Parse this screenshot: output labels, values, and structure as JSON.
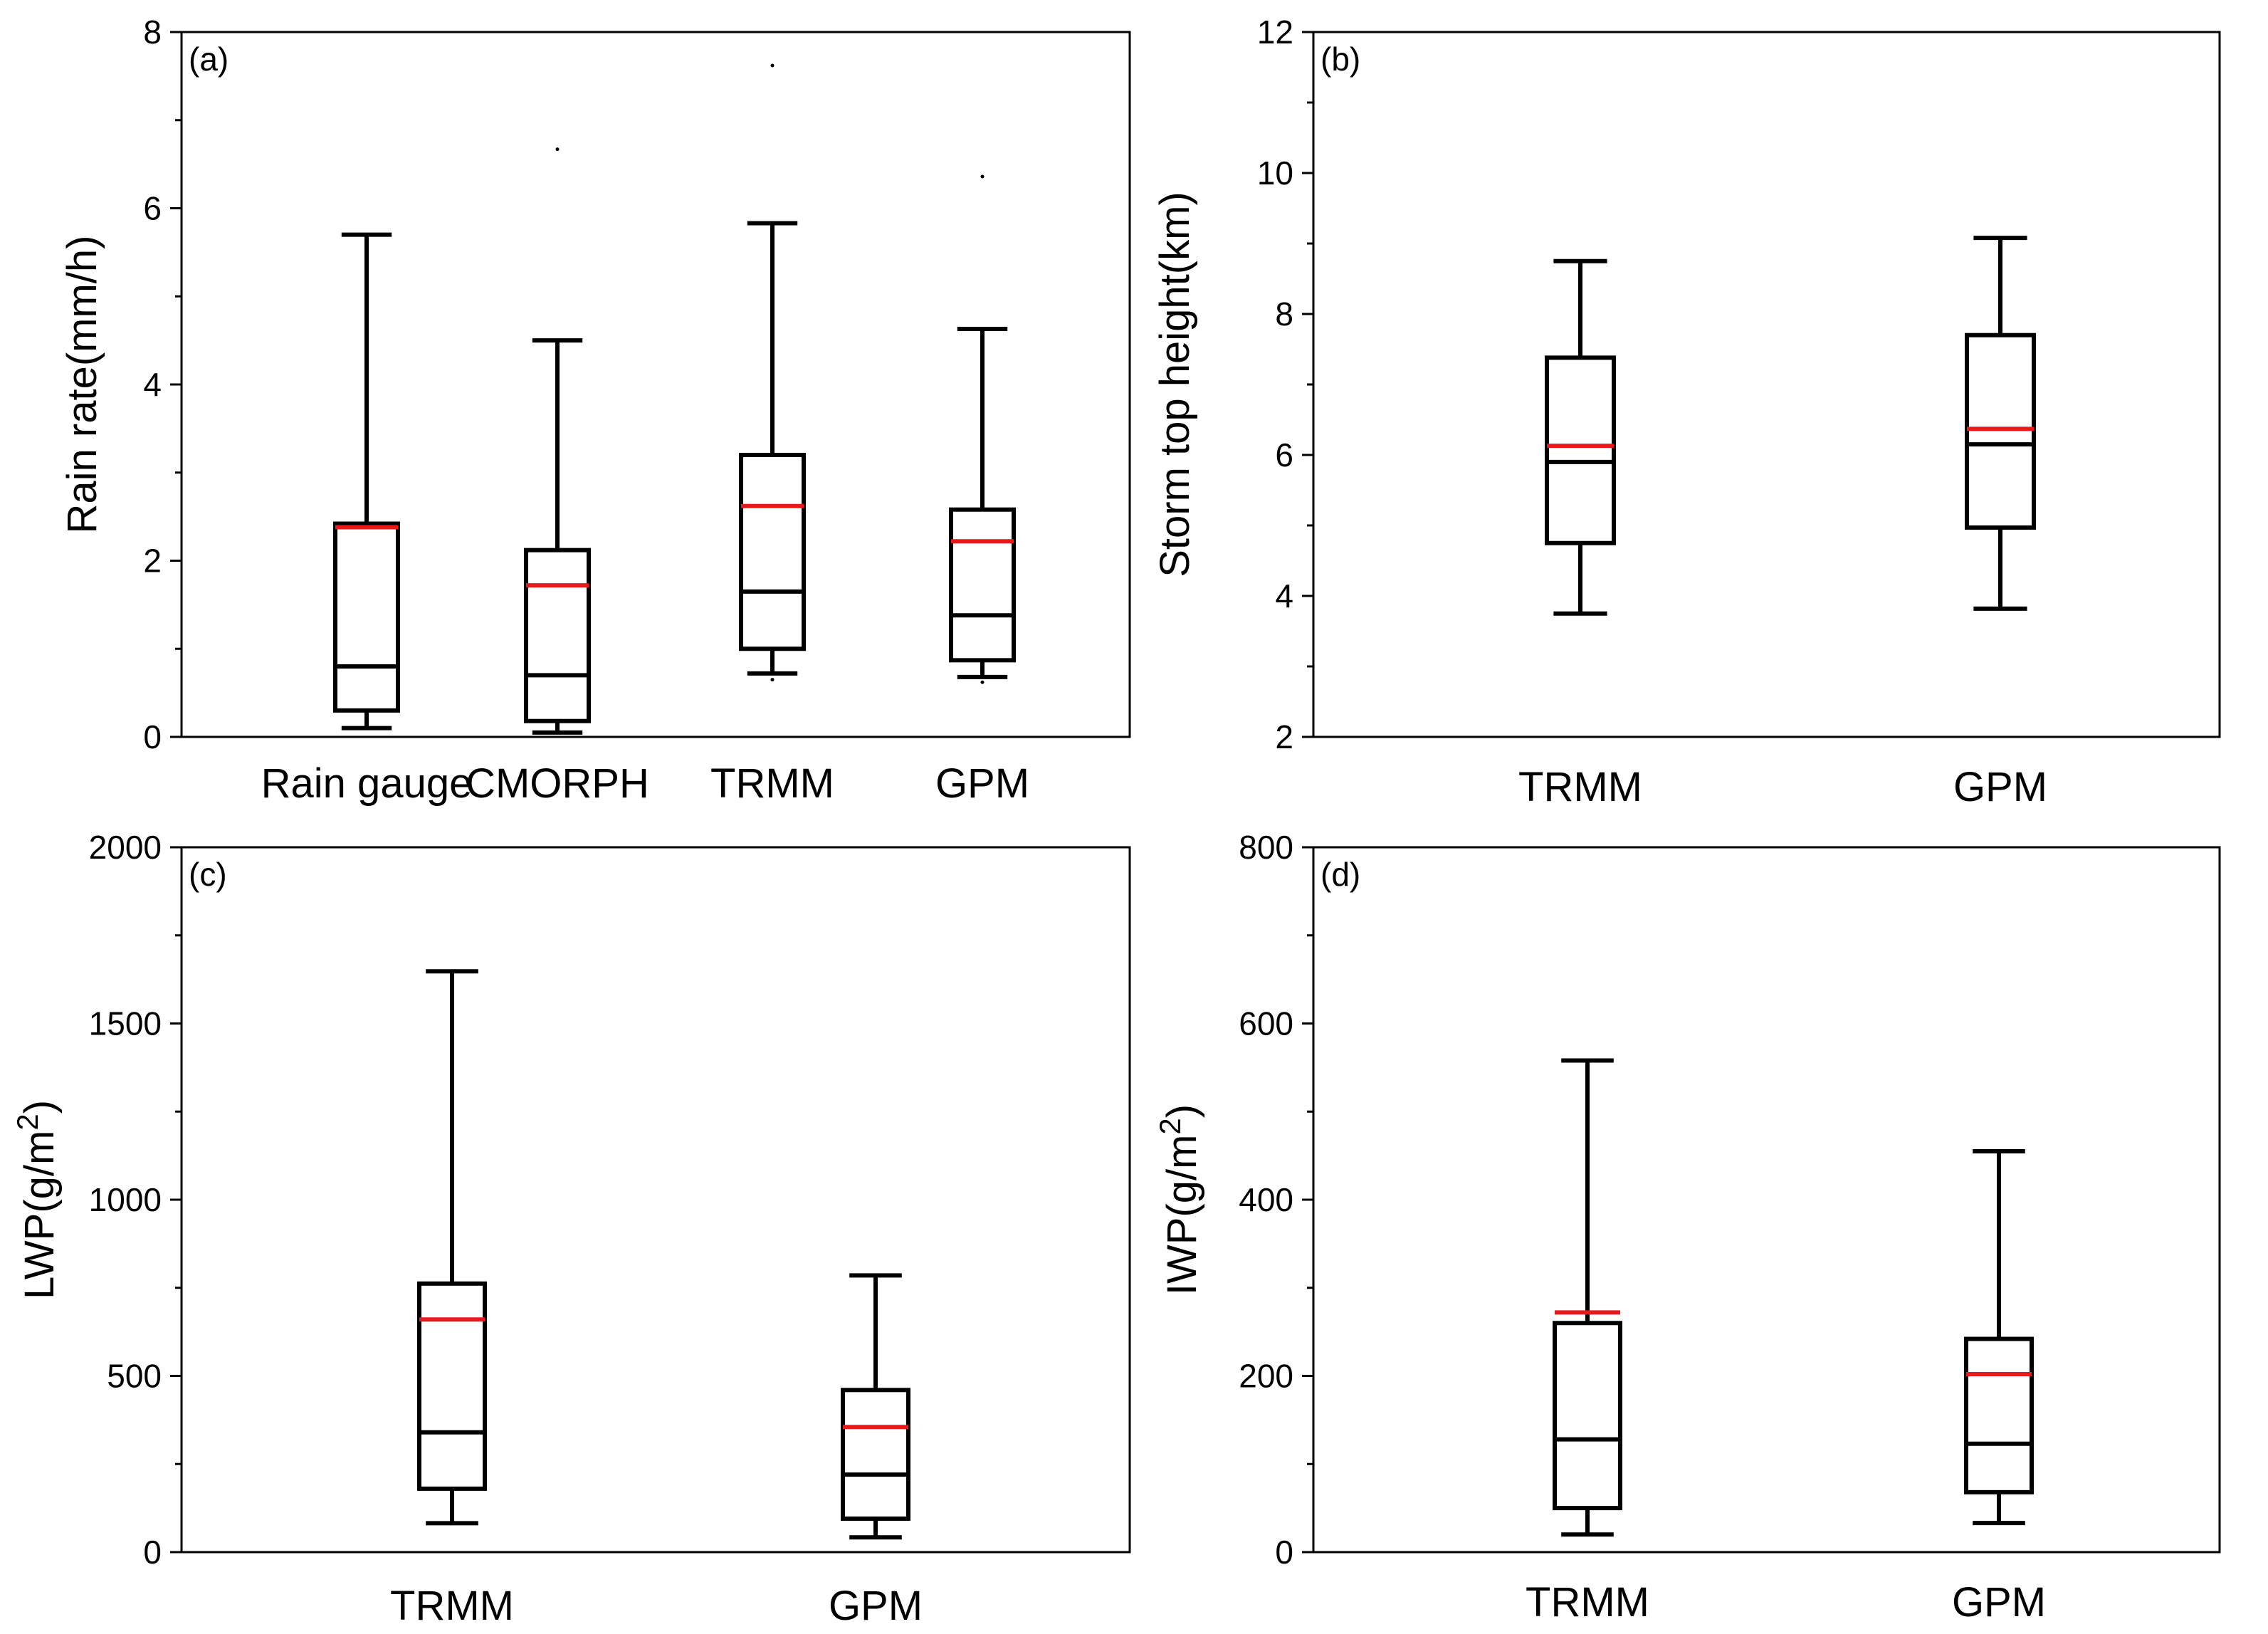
{
  "colors": {
    "box": "#000000",
    "median": "#000000",
    "mean": "#e8191c",
    "background": "#ffffff"
  },
  "chart_data": [
    {
      "type": "box",
      "panel_label": "(a)",
      "ylabel": "Rain rate(mm/h)",
      "ylim": [
        0,
        8
      ],
      "yticks": [
        0,
        2,
        4,
        6,
        8
      ],
      "yminor": [
        1,
        3,
        5,
        7
      ],
      "categories": [
        "Rain gauge",
        "CMORPH",
        "TRMM",
        "GPM"
      ],
      "boxes": [
        {
          "name": "Rain gauge",
          "whisker_low": 0.1,
          "q1": 0.3,
          "median": 0.8,
          "mean": 2.38,
          "q3": 2.42,
          "whisker_high": 5.7,
          "outliers": []
        },
        {
          "name": "CMORPH",
          "whisker_low": 0.05,
          "q1": 0.18,
          "median": 0.7,
          "mean": 1.72,
          "q3": 2.12,
          "whisker_high": 4.5,
          "outliers": [
            0.05,
            6.67
          ]
        },
        {
          "name": "TRMM",
          "whisker_low": 0.72,
          "q1": 1.0,
          "median": 1.65,
          "mean": 2.62,
          "q3": 3.2,
          "whisker_high": 5.83,
          "outliers": [
            0.65,
            7.62
          ]
        },
        {
          "name": "GPM",
          "whisker_low": 0.68,
          "q1": 0.87,
          "median": 1.38,
          "mean": 2.22,
          "q3": 2.58,
          "whisker_high": 4.63,
          "outliers": [
            0.62,
            6.36
          ]
        }
      ]
    },
    {
      "type": "box",
      "panel_label": "(b)",
      "ylabel": "Storm top height(km)",
      "ylim": [
        2,
        12
      ],
      "yticks": [
        2,
        4,
        6,
        8,
        10,
        12
      ],
      "yminor": [
        3,
        5,
        7,
        9,
        11
      ],
      "categories": [
        "TRMM",
        "GPM"
      ],
      "boxes": [
        {
          "name": "TRMM",
          "whisker_low": 3.75,
          "q1": 4.75,
          "median": 5.9,
          "mean": 6.13,
          "q3": 7.38,
          "whisker_high": 8.75,
          "outliers": []
        },
        {
          "name": "GPM",
          "whisker_low": 3.82,
          "q1": 4.97,
          "median": 6.15,
          "mean": 6.37,
          "q3": 7.7,
          "whisker_high": 9.08,
          "outliers": []
        }
      ]
    },
    {
      "type": "box",
      "panel_label": "(c)",
      "ylabel": "LWP(g/m",
      "ylabel_sup": "2",
      "ylabel_end": ")",
      "ylim": [
        0,
        2000
      ],
      "yticks": [
        0,
        500,
        1000,
        1500,
        2000
      ],
      "yminor": [
        250,
        750,
        1250,
        1750
      ],
      "categories": [
        "TRMM",
        "GPM"
      ],
      "boxes": [
        {
          "name": "TRMM",
          "whisker_low": 82,
          "q1": 180,
          "median": 340,
          "mean": 660,
          "q3": 762,
          "whisker_high": 1648,
          "outliers": []
        },
        {
          "name": "GPM",
          "whisker_low": 42,
          "q1": 95,
          "median": 220,
          "mean": 355,
          "q3": 460,
          "whisker_high": 785,
          "outliers": []
        }
      ]
    },
    {
      "type": "box",
      "panel_label": "(d)",
      "ylabel": "IWP(g/m",
      "ylabel_sup": "2",
      "ylabel_end": ")",
      "ylim": [
        0,
        800
      ],
      "yticks": [
        0,
        200,
        400,
        600,
        800
      ],
      "yminor": [
        100,
        300,
        500,
        700
      ],
      "categories": [
        "TRMM",
        "GPM"
      ],
      "boxes": [
        {
          "name": "TRMM",
          "whisker_low": 20,
          "q1": 50,
          "median": 128,
          "mean": 272,
          "q3": 260,
          "whisker_high": 558,
          "outliers": []
        },
        {
          "name": "GPM",
          "whisker_low": 33,
          "q1": 68,
          "median": 123,
          "mean": 202,
          "q3": 242,
          "whisker_high": 455,
          "outliers": []
        }
      ]
    }
  ]
}
